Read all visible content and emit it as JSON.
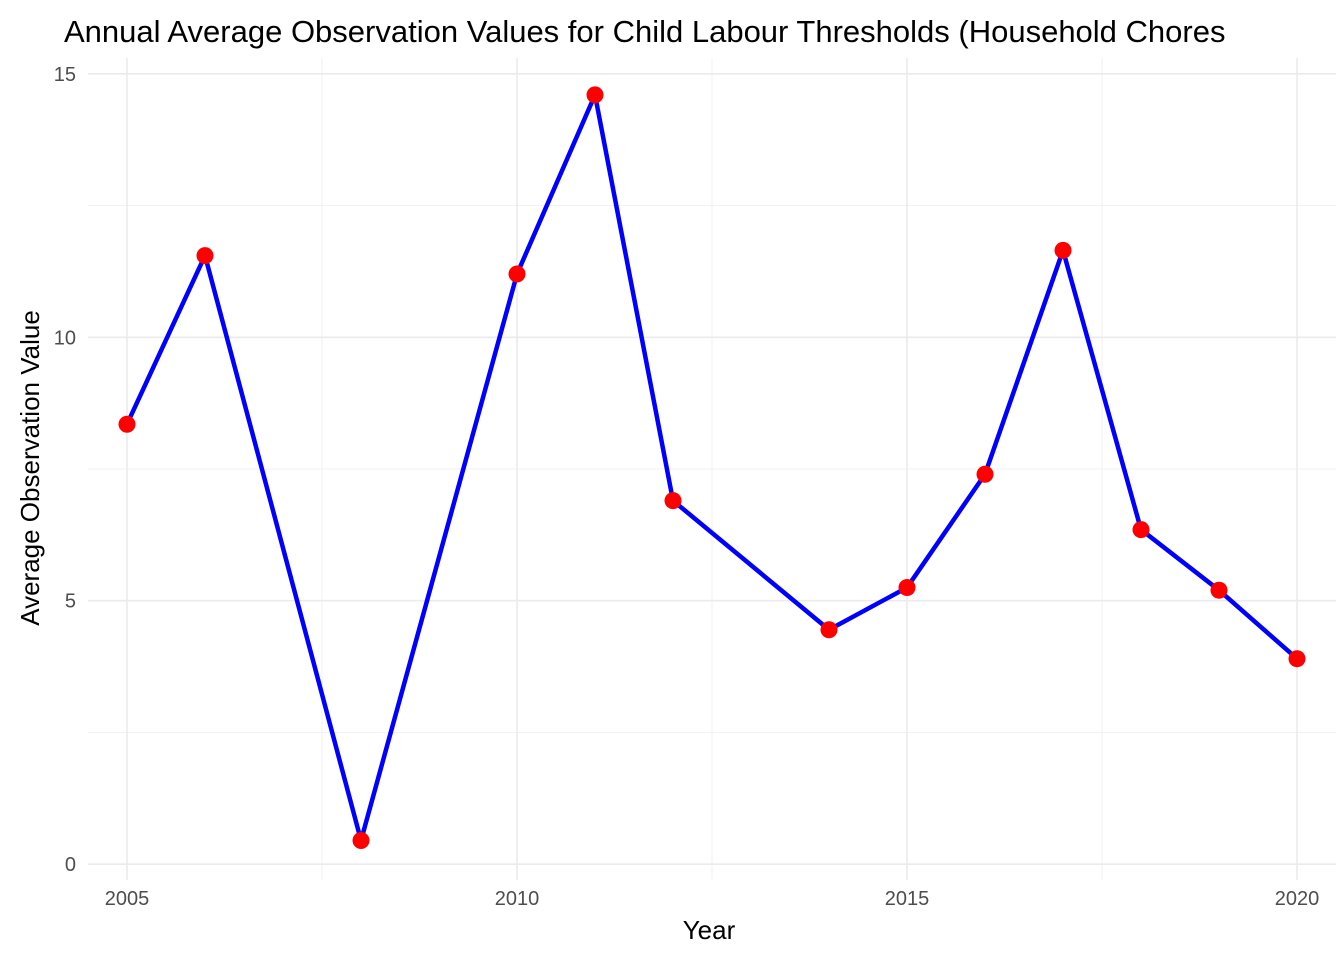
{
  "chart_data": {
    "type": "line",
    "title": "Annual Average Observation Values for Child Labour Thresholds (Household Chores",
    "xlabel": "Year",
    "ylabel": "Average Observation Value",
    "xlim": [
      2004.5,
      2020.5
    ],
    "ylim": [
      -0.3,
      15.3
    ],
    "x_ticks": [
      2005,
      2010,
      2015,
      2020
    ],
    "y_ticks": [
      0,
      5,
      10,
      15
    ],
    "x_minor": [
      2007.5,
      2012.5,
      2017.5
    ],
    "y_minor": [
      2.5,
      7.5,
      12.5
    ],
    "grid": true,
    "line_color": "#0000ff",
    "point_color": "#ff0000",
    "series": [
      {
        "x": [
          2005,
          2006,
          2008,
          2010,
          2011,
          2012,
          2014,
          2015,
          2016,
          2017,
          2018,
          2019,
          2020
        ],
        "values": [
          8.35,
          11.55,
          0.45,
          11.2,
          14.6,
          6.9,
          4.45,
          5.25,
          7.4,
          11.65,
          6.35,
          5.2,
          3.9
        ]
      }
    ]
  }
}
